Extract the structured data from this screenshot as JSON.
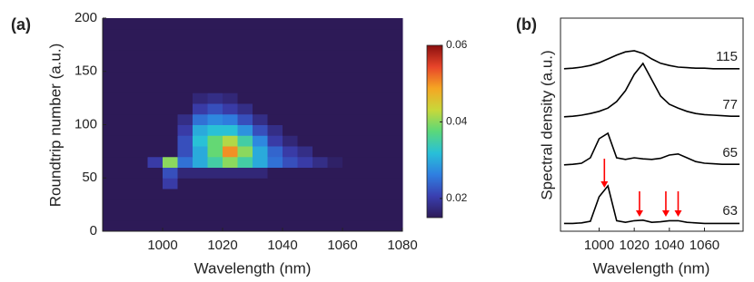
{
  "chart_data": [
    {
      "type": "heatmap",
      "label": "(a)",
      "xlabel": "Wavelength (nm)",
      "ylabel": "Roundtrip number (a.u.)",
      "x": [
        982.5,
        987.5,
        992.5,
        997.5,
        1002.5,
        1007.5,
        1012.5,
        1017.5,
        1022.5,
        1027.5,
        1032.5,
        1037.5,
        1042.5,
        1047.5,
        1052.5,
        1057.5,
        1062.5,
        1067.5,
        1072.5,
        1077.5
      ],
      "y": [
        5,
        15,
        25,
        35,
        45,
        55,
        65,
        75,
        85,
        95,
        105,
        115,
        125,
        135,
        145,
        155,
        165,
        175,
        185,
        195
      ],
      "z": [
        [
          0.015,
          0.015,
          0.015,
          0.015,
          0.015,
          0.015,
          0.015,
          0.015,
          0.015,
          0.015,
          0.015,
          0.015,
          0.015,
          0.015,
          0.015,
          0.015,
          0.015,
          0.015,
          0.015,
          0.015
        ],
        [
          0.015,
          0.015,
          0.015,
          0.015,
          0.015,
          0.015,
          0.015,
          0.015,
          0.015,
          0.015,
          0.015,
          0.015,
          0.015,
          0.015,
          0.015,
          0.015,
          0.015,
          0.015,
          0.015,
          0.015
        ],
        [
          0.015,
          0.015,
          0.015,
          0.015,
          0.015,
          0.015,
          0.015,
          0.015,
          0.015,
          0.015,
          0.015,
          0.015,
          0.015,
          0.015,
          0.015,
          0.015,
          0.015,
          0.015,
          0.015,
          0.015
        ],
        [
          0.015,
          0.015,
          0.015,
          0.015,
          0.015,
          0.015,
          0.015,
          0.015,
          0.015,
          0.015,
          0.015,
          0.015,
          0.015,
          0.015,
          0.015,
          0.015,
          0.015,
          0.015,
          0.015,
          0.015
        ],
        [
          0.015,
          0.015,
          0.015,
          0.015,
          0.02,
          0.015,
          0.015,
          0.015,
          0.015,
          0.015,
          0.015,
          0.015,
          0.015,
          0.015,
          0.015,
          0.015,
          0.015,
          0.015,
          0.015,
          0.015
        ],
        [
          0.015,
          0.015,
          0.015,
          0.015,
          0.022,
          0.017,
          0.017,
          0.017,
          0.017,
          0.017,
          0.017,
          0.015,
          0.015,
          0.015,
          0.015,
          0.015,
          0.015,
          0.015,
          0.015,
          0.015
        ],
        [
          0.015,
          0.015,
          0.015,
          0.02,
          0.04,
          0.025,
          0.03,
          0.035,
          0.04,
          0.035,
          0.03,
          0.025,
          0.022,
          0.02,
          0.018,
          0.016,
          0.015,
          0.015,
          0.015,
          0.015
        ],
        [
          0.015,
          0.015,
          0.015,
          0.015,
          0.015,
          0.022,
          0.03,
          0.038,
          0.05,
          0.04,
          0.03,
          0.024,
          0.02,
          0.018,
          0.015,
          0.015,
          0.015,
          0.015,
          0.015,
          0.015
        ],
        [
          0.015,
          0.015,
          0.015,
          0.015,
          0.015,
          0.022,
          0.032,
          0.038,
          0.042,
          0.035,
          0.027,
          0.02,
          0.017,
          0.015,
          0.015,
          0.015,
          0.015,
          0.015,
          0.015,
          0.015
        ],
        [
          0.015,
          0.015,
          0.015,
          0.015,
          0.015,
          0.02,
          0.03,
          0.032,
          0.032,
          0.028,
          0.022,
          0.018,
          0.015,
          0.015,
          0.015,
          0.015,
          0.015,
          0.015,
          0.015,
          0.015
        ],
        [
          0.015,
          0.015,
          0.015,
          0.015,
          0.015,
          0.018,
          0.025,
          0.027,
          0.026,
          0.022,
          0.018,
          0.015,
          0.015,
          0.015,
          0.015,
          0.015,
          0.015,
          0.015,
          0.015,
          0.015
        ],
        [
          0.015,
          0.015,
          0.015,
          0.015,
          0.015,
          0.015,
          0.02,
          0.022,
          0.02,
          0.018,
          0.015,
          0.015,
          0.015,
          0.015,
          0.015,
          0.015,
          0.015,
          0.015,
          0.015,
          0.015
        ],
        [
          0.015,
          0.015,
          0.015,
          0.015,
          0.015,
          0.015,
          0.017,
          0.018,
          0.017,
          0.015,
          0.015,
          0.015,
          0.015,
          0.015,
          0.015,
          0.015,
          0.015,
          0.015,
          0.015,
          0.015
        ],
        [
          0.015,
          0.015,
          0.015,
          0.015,
          0.015,
          0.015,
          0.015,
          0.015,
          0.015,
          0.015,
          0.015,
          0.015,
          0.015,
          0.015,
          0.015,
          0.015,
          0.015,
          0.015,
          0.015,
          0.015
        ],
        [
          0.015,
          0.015,
          0.015,
          0.015,
          0.015,
          0.015,
          0.015,
          0.015,
          0.015,
          0.015,
          0.015,
          0.015,
          0.015,
          0.015,
          0.015,
          0.015,
          0.015,
          0.015,
          0.015,
          0.015
        ],
        [
          0.015,
          0.015,
          0.015,
          0.015,
          0.015,
          0.015,
          0.015,
          0.015,
          0.015,
          0.015,
          0.015,
          0.015,
          0.015,
          0.015,
          0.015,
          0.015,
          0.015,
          0.015,
          0.015,
          0.015
        ],
        [
          0.015,
          0.015,
          0.015,
          0.015,
          0.015,
          0.015,
          0.015,
          0.015,
          0.015,
          0.015,
          0.015,
          0.015,
          0.015,
          0.015,
          0.015,
          0.015,
          0.015,
          0.015,
          0.015,
          0.015
        ],
        [
          0.015,
          0.015,
          0.015,
          0.015,
          0.015,
          0.015,
          0.015,
          0.015,
          0.015,
          0.015,
          0.015,
          0.015,
          0.015,
          0.015,
          0.015,
          0.015,
          0.015,
          0.015,
          0.015,
          0.015
        ],
        [
          0.015,
          0.015,
          0.015,
          0.015,
          0.015,
          0.015,
          0.015,
          0.015,
          0.015,
          0.015,
          0.015,
          0.015,
          0.015,
          0.015,
          0.015,
          0.015,
          0.015,
          0.015,
          0.015,
          0.015
        ],
        [
          0.015,
          0.015,
          0.015,
          0.015,
          0.015,
          0.015,
          0.015,
          0.015,
          0.015,
          0.015,
          0.015,
          0.015,
          0.015,
          0.015,
          0.015,
          0.015,
          0.015,
          0.015,
          0.015,
          0.015
        ]
      ],
      "xlim": [
        980,
        1080
      ],
      "ylim": [
        0,
        200
      ],
      "xticks": [
        1000,
        1020,
        1040,
        1060,
        1080
      ],
      "yticks": [
        0,
        50,
        100,
        150,
        200
      ],
      "clim": [
        0.015,
        0.06
      ],
      "cticks": [
        0.02,
        0.04,
        0.06
      ],
      "colormap": [
        "#2d1a57",
        "#3a3fb0",
        "#2f7fe0",
        "#28c0d8",
        "#5ad87a",
        "#c8d83a",
        "#f5a623",
        "#e8452a",
        "#8a0f0f"
      ]
    },
    {
      "type": "line",
      "label": "(b)",
      "xlabel": "Wavelength (nm)",
      "ylabel": "Spectral density (a.u.)",
      "x": [
        980,
        985,
        990,
        995,
        1000,
        1005,
        1010,
        1015,
        1020,
        1025,
        1030,
        1035,
        1040,
        1045,
        1050,
        1055,
        1060,
        1065,
        1070,
        1075,
        1080
      ],
      "series": [
        {
          "name": "115",
          "color": "#000000",
          "values": [
            0.02,
            0.03,
            0.05,
            0.08,
            0.13,
            0.2,
            0.27,
            0.33,
            0.35,
            0.3,
            0.2,
            0.12,
            0.08,
            0.05,
            0.04,
            0.03,
            0.03,
            0.02,
            0.02,
            0.02,
            0.02
          ]
        },
        {
          "name": "77",
          "color": "#000000",
          "values": [
            0.02,
            0.03,
            0.05,
            0.08,
            0.12,
            0.18,
            0.3,
            0.5,
            0.8,
            1.0,
            0.7,
            0.4,
            0.25,
            0.18,
            0.12,
            0.08,
            0.06,
            0.05,
            0.04,
            0.03,
            0.03
          ]
        },
        {
          "name": "65",
          "color": "#000000",
          "values": [
            0.02,
            0.03,
            0.05,
            0.15,
            0.5,
            0.6,
            0.15,
            0.12,
            0.15,
            0.13,
            0.12,
            0.14,
            0.2,
            0.22,
            0.15,
            0.08,
            0.05,
            0.04,
            0.03,
            0.03,
            0.03
          ]
        },
        {
          "name": "63",
          "color": "#000000",
          "values": [
            0.01,
            0.01,
            0.02,
            0.05,
            0.5,
            0.7,
            0.06,
            0.03,
            0.06,
            0.07,
            0.03,
            0.04,
            0.06,
            0.06,
            0.03,
            0.02,
            0.01,
            0.01,
            0.01,
            0.01,
            0.01
          ]
        }
      ],
      "xlim": [
        978,
        1082
      ],
      "xticks": [
        1000,
        1020,
        1040,
        1060
      ],
      "arrows_x": [
        1003,
        1023,
        1038,
        1045
      ],
      "arrow_color": "#ff0000"
    }
  ]
}
